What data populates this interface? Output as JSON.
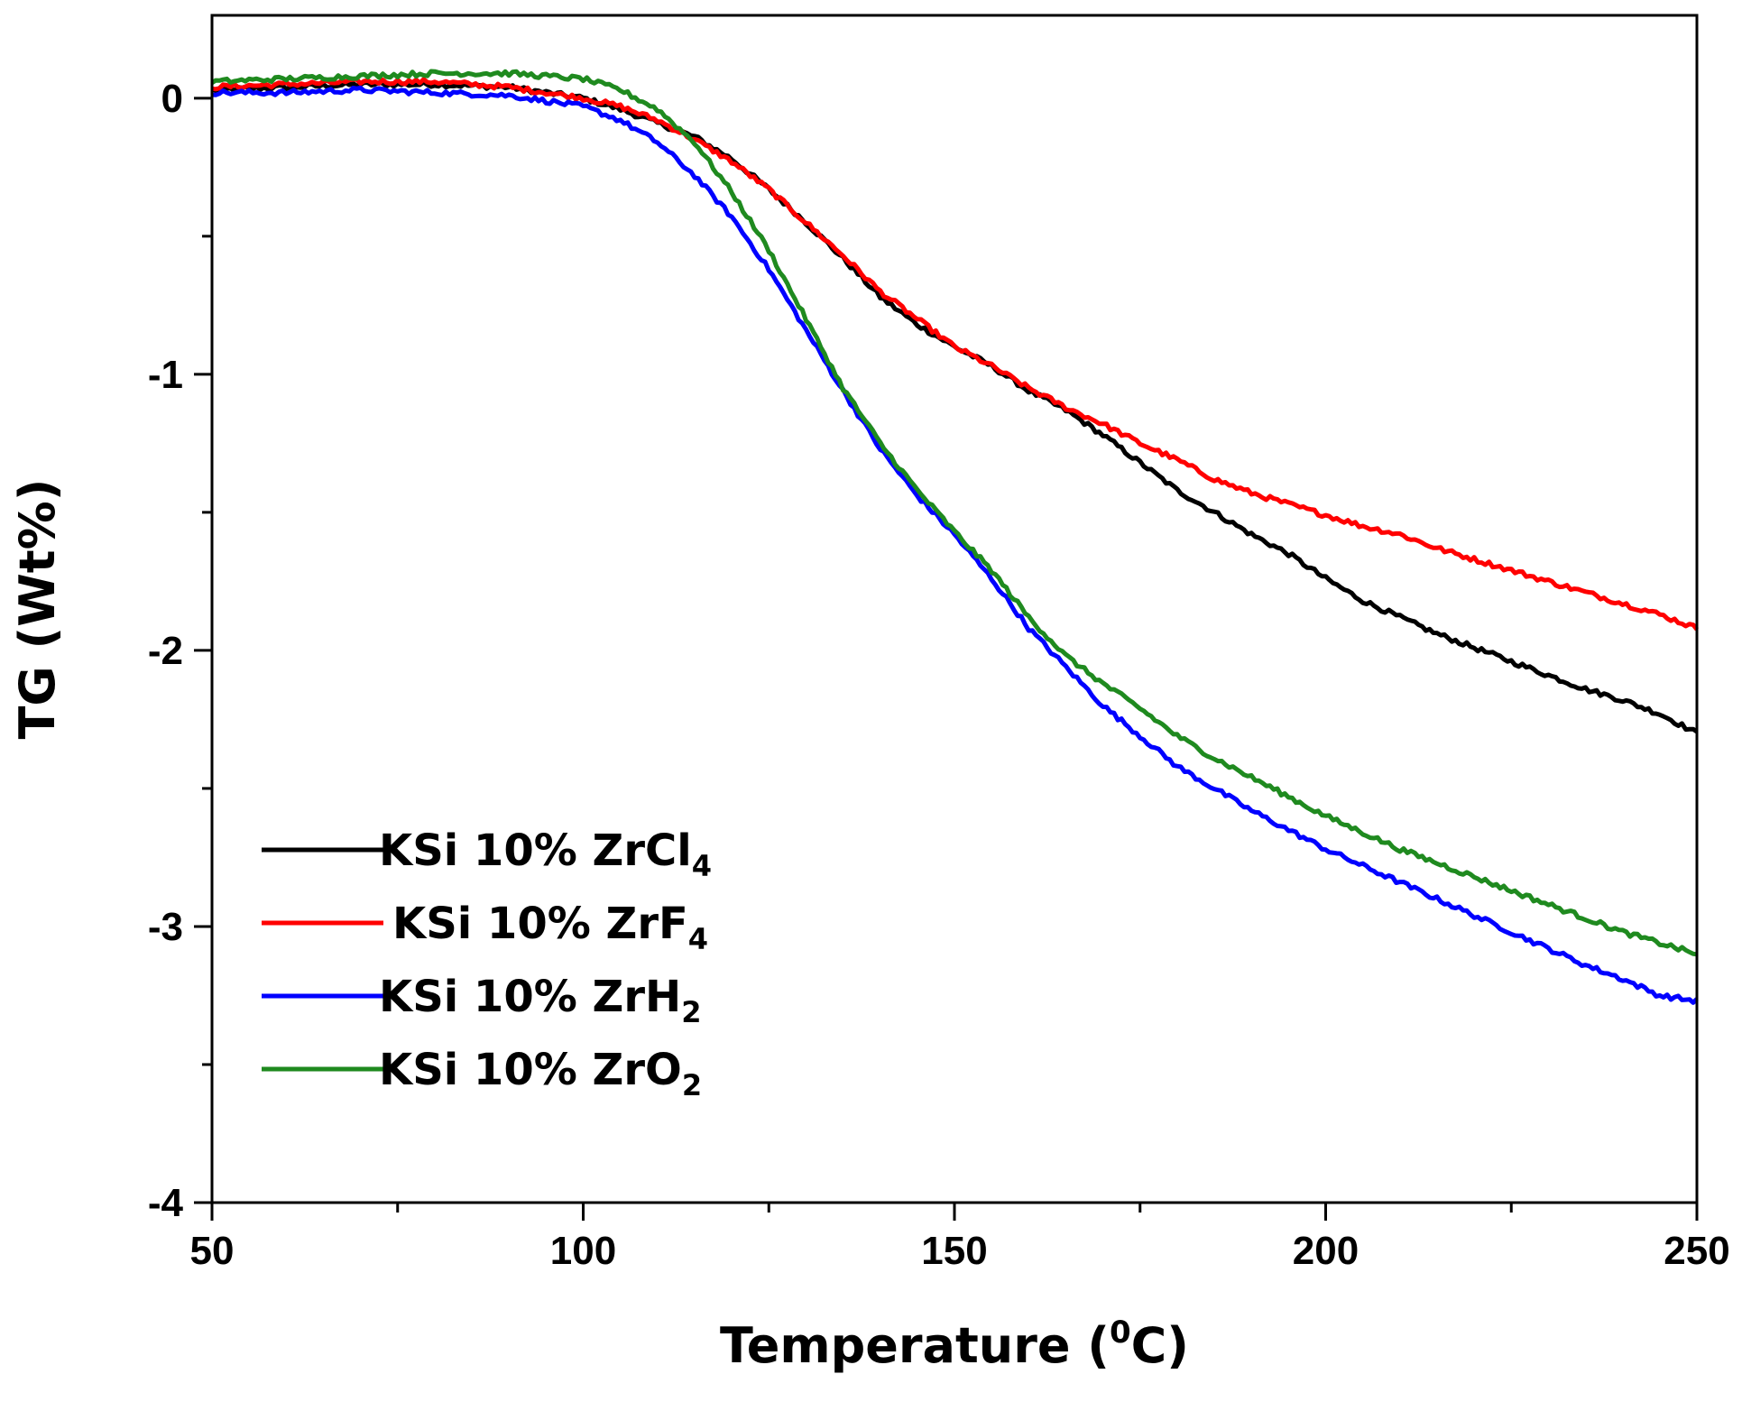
{
  "chart_data": {
    "type": "line",
    "title": "",
    "xlabel": {
      "main": "Temperature (",
      "superscript": "0",
      "unit": "C)"
    },
    "ylabel": "TG (Wt%)",
    "xlim": [
      50,
      250
    ],
    "ylim": [
      -4,
      0.3
    ],
    "x_major_ticks": [
      50,
      100,
      150,
      200,
      250
    ],
    "x_minor_ticks": [
      75,
      125,
      175,
      225
    ],
    "y_major_ticks": [
      0,
      -1,
      -2,
      -3,
      -4
    ],
    "y_minor_ticks": [
      -0.5,
      -1.5,
      -2.5,
      -3.5
    ],
    "x_tick_labels": [
      "50",
      "100",
      "150",
      "200",
      "250"
    ],
    "y_tick_labels": [
      "0",
      "-1",
      "-2",
      "-3",
      "-4"
    ],
    "grid": false,
    "legend_position": "lower-left",
    "x": [
      50,
      60,
      70,
      80,
      90,
      100,
      105,
      110,
      115,
      120,
      125,
      130,
      135,
      140,
      145,
      150,
      155,
      160,
      165,
      170,
      175,
      180,
      185,
      190,
      195,
      200,
      205,
      210,
      215,
      220,
      225,
      230,
      235,
      240,
      245,
      250
    ],
    "series": [
      {
        "name": "KSi 10% ZrCl",
        "subscript": "4",
        "color": "#000000",
        "values": [
          0.03,
          0.04,
          0.05,
          0.05,
          0.04,
          0.0,
          -0.04,
          -0.09,
          -0.14,
          -0.22,
          -0.33,
          -0.45,
          -0.58,
          -0.72,
          -0.82,
          -0.9,
          -0.97,
          -1.06,
          -1.13,
          -1.22,
          -1.32,
          -1.42,
          -1.5,
          -1.58,
          -1.65,
          -1.74,
          -1.82,
          -1.88,
          -1.94,
          -1.99,
          -2.04,
          -2.09,
          -2.14,
          -2.18,
          -2.23,
          -2.3
        ]
      },
      {
        "name": "KSi 10% ZrF",
        "subscript": "4",
        "color": "#ff0000",
        "values": [
          0.04,
          0.05,
          0.06,
          0.06,
          0.04,
          0.0,
          -0.03,
          -0.08,
          -0.15,
          -0.23,
          -0.33,
          -0.45,
          -0.57,
          -0.7,
          -0.8,
          -0.9,
          -0.97,
          -1.05,
          -1.12,
          -1.18,
          -1.25,
          -1.31,
          -1.38,
          -1.43,
          -1.47,
          -1.51,
          -1.55,
          -1.58,
          -1.63,
          -1.67,
          -1.71,
          -1.75,
          -1.79,
          -1.83,
          -1.87,
          -1.92
        ]
      },
      {
        "name": "KSi 10% ZrH",
        "subscript": "2",
        "color": "#0000ff",
        "values": [
          0.02,
          0.02,
          0.03,
          0.02,
          0.01,
          -0.03,
          -0.08,
          -0.16,
          -0.28,
          -0.43,
          -0.62,
          -0.84,
          -1.06,
          -1.27,
          -1.44,
          -1.58,
          -1.74,
          -1.92,
          -2.06,
          -2.2,
          -2.31,
          -2.42,
          -2.5,
          -2.58,
          -2.65,
          -2.72,
          -2.78,
          -2.84,
          -2.9,
          -2.96,
          -3.02,
          -3.08,
          -3.14,
          -3.19,
          -3.25,
          -3.27
        ]
      },
      {
        "name": "KSi 10% ZrO",
        "subscript": "2",
        "color": "#1f8a1f",
        "values": [
          0.06,
          0.07,
          0.08,
          0.09,
          0.09,
          0.07,
          0.03,
          -0.04,
          -0.16,
          -0.34,
          -0.55,
          -0.8,
          -1.05,
          -1.25,
          -1.42,
          -1.57,
          -1.71,
          -1.88,
          -2.02,
          -2.12,
          -2.21,
          -2.31,
          -2.39,
          -2.46,
          -2.53,
          -2.6,
          -2.66,
          -2.72,
          -2.77,
          -2.82,
          -2.87,
          -2.92,
          -2.97,
          -3.02,
          -3.06,
          -3.1
        ]
      }
    ]
  }
}
